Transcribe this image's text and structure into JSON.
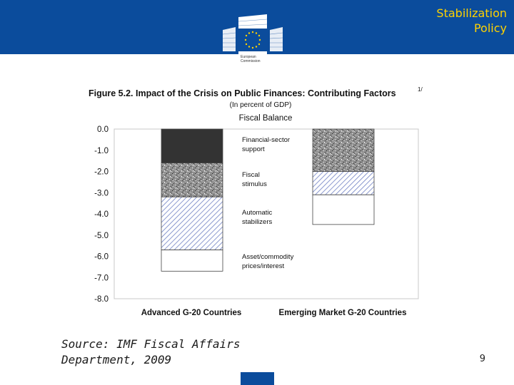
{
  "header": {
    "title_line1": "Stabilization",
    "title_line2": "Policy",
    "logo_line1": "European",
    "logo_line2": "Commission"
  },
  "colors": {
    "header_bg": "#0b4c9c",
    "header_text": "#ffd200",
    "financial_sector": "#333333",
    "fiscal_stimulus": "speckled-gray",
    "automatic_stabilizers": "blue-hatch",
    "asset_prices": "#ffffff"
  },
  "chart_data": {
    "type": "bar",
    "stacked": true,
    "title": "Figure 5.2. Impact of the Crisis on Public Finances: Contributing Factors",
    "title_footnote": "1/",
    "subtitle": "(In percent of GDP)",
    "panel_title": "Fiscal Balance",
    "categories": [
      "Advanced G-20 Countries",
      "Emerging Market G-20 Countries"
    ],
    "ylim": [
      -8.0,
      0.0
    ],
    "yticks": [
      "0.0",
      "-1.0",
      "-2.0",
      "-3.0",
      "-4.0",
      "-5.0",
      "-6.0",
      "-7.0",
      "-8.0"
    ],
    "grid": false,
    "legend_placement": "center",
    "series": [
      {
        "name": "Financial-sector support",
        "values": [
          -1.6,
          0.0
        ]
      },
      {
        "name": "Fiscal stimulus",
        "values": [
          -1.6,
          -2.0
        ]
      },
      {
        "name": "Automatic stabilizers",
        "values": [
          -2.5,
          -1.1
        ]
      },
      {
        "name": "Asset/commodity prices/interest",
        "values": [
          -1.0,
          -1.4
        ]
      }
    ],
    "legend_labels": [
      [
        "Financial-sector",
        "support"
      ],
      [
        "Fiscal",
        "stimulus"
      ],
      [
        "Automatic",
        "stabilizers"
      ],
      [
        "Asset/commodity",
        "prices/interest"
      ]
    ]
  },
  "source": {
    "line1": "Source: IMF Fiscal Affairs",
    "line2": "Department, 2009"
  },
  "page_number": "9"
}
